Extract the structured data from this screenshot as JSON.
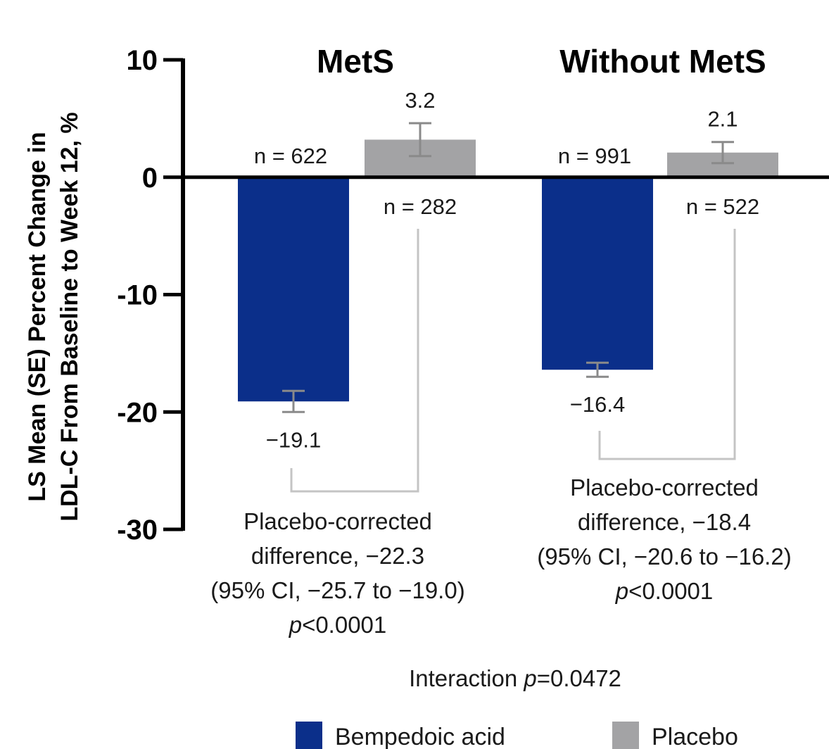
{
  "chart_data": {
    "type": "bar",
    "ylabel_lines": [
      "LS Mean (SE) Percent Change in",
      "LDL-C From Baseline to Week 12, %"
    ],
    "ylim": [
      -30,
      10
    ],
    "yticks": [
      10,
      0,
      -10,
      -20,
      -30
    ],
    "colors": {
      "Bempedoic acid": "#0b2f8a",
      "Placebo": "#a3a3a5",
      "errorbar": "#8a8a8a",
      "bracket": "#c4c4c4"
    },
    "groups": [
      {
        "title": "MetS",
        "bars": [
          {
            "series": "Bempedoic acid",
            "value": -19.1,
            "se": 0.9,
            "value_label": "−19.1",
            "n_label": "n = 622"
          },
          {
            "series": "Placebo",
            "value": 3.2,
            "se": 1.4,
            "value_label": "3.2",
            "n_label": "n = 282"
          }
        ],
        "note": [
          {
            "text": "Placebo-corrected"
          },
          {
            "text": "difference, −22.3"
          },
          {
            "text": "(95% CI, −25.7 to −19.0)"
          },
          {
            "italic": "p",
            "text": "<0.0001"
          }
        ]
      },
      {
        "title": "Without MetS",
        "bars": [
          {
            "series": "Bempedoic acid",
            "value": -16.4,
            "se": 0.6,
            "value_label": "−16.4",
            "n_label": "n = 991"
          },
          {
            "series": "Placebo",
            "value": 2.1,
            "se": 0.9,
            "value_label": "2.1",
            "n_label": "n = 522"
          }
        ],
        "note": [
          {
            "text": "Placebo-corrected"
          },
          {
            "text": "difference, −18.4"
          },
          {
            "text": "(95% CI, −20.6 to −16.2)"
          },
          {
            "italic": "p",
            "text": "<0.0001"
          }
        ]
      }
    ],
    "interaction": {
      "prefix": "Interaction ",
      "italic": "p",
      "suffix": "=0.0472"
    },
    "legend": [
      "Bempedoic acid",
      "Placebo"
    ]
  }
}
